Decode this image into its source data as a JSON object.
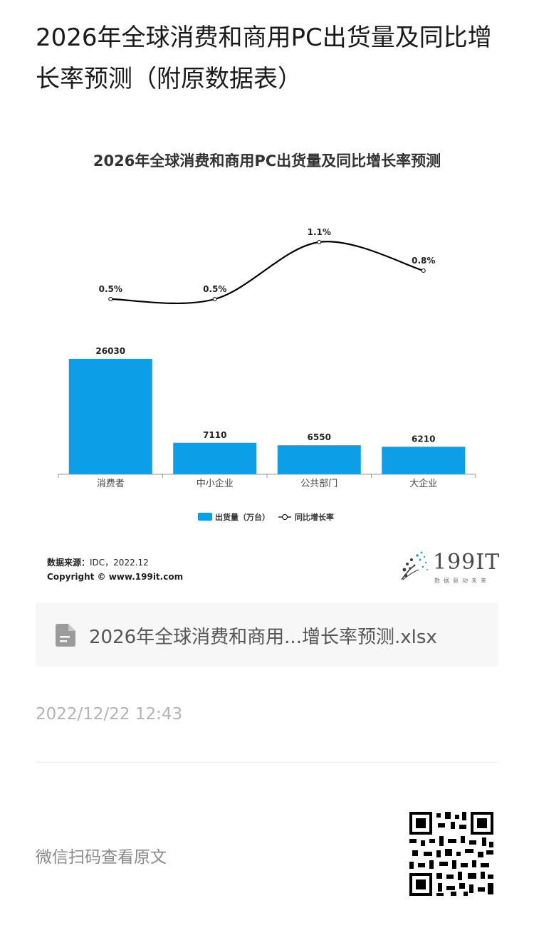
{
  "article": {
    "title": "2026年全球消费和商用PC出货量及同比增长率预测（附原数据表）"
  },
  "chart_data": {
    "type": "bar",
    "title": "2026年全球消费和商用PC出货量及同比增长率预测",
    "categories": [
      "消费者",
      "中小企业",
      "公共部门",
      "大企业"
    ],
    "series": [
      {
        "name": "出货量（万台）",
        "type": "bar",
        "values": [
          26030,
          7110,
          6550,
          6210
        ],
        "labels": [
          "26030",
          "7110",
          "6550",
          "6210"
        ],
        "color": "#0c9ee6"
      },
      {
        "name": "同比增长率",
        "type": "line",
        "values": [
          0.5,
          0.5,
          1.1,
          0.8
        ],
        "labels": [
          "0.5%",
          "0.5%",
          "1.1%",
          "0.8%"
        ],
        "color": "#000000"
      }
    ],
    "legend_position": "bottom",
    "grid": false
  },
  "source": {
    "label": "数据来源：",
    "value": "IDC，2022.12",
    "copyright": "Copyright © www.199it.com"
  },
  "logo": {
    "text": "199IT",
    "subtitle": "数据驱动未来"
  },
  "file": {
    "name": "2026年全球消费和商用...增长率预测.xlsx",
    "icon": "document-icon"
  },
  "timestamp": "2022/12/22 12:43",
  "qr_hint": "微信扫码查看原文"
}
